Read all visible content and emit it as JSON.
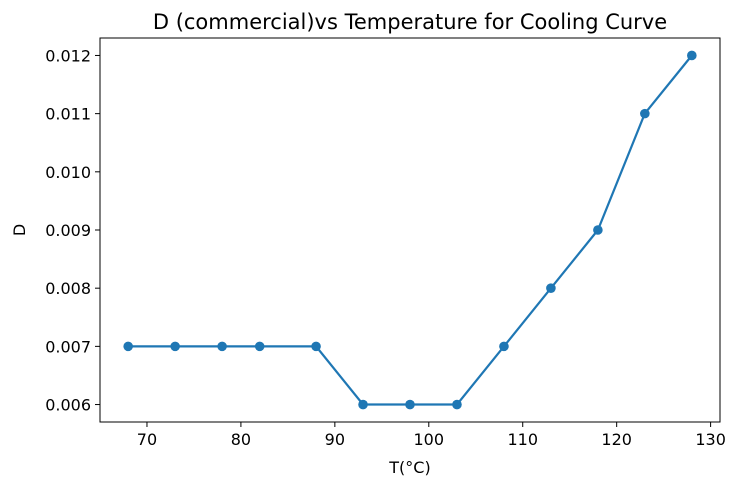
{
  "chart_data": {
    "type": "line",
    "title": "D (commercial)vs Temperature for Cooling Curve",
    "xlabel": "T(°C)",
    "ylabel": "D",
    "xlim": [
      65,
      131
    ],
    "ylim": [
      0.0057,
      0.0123
    ],
    "xticks": [
      70,
      80,
      90,
      100,
      110,
      120,
      130
    ],
    "yticks": [
      0.006,
      0.007,
      0.008,
      0.009,
      0.01,
      0.011,
      0.012
    ],
    "ytick_labels": [
      "0.006",
      "0.007",
      "0.008",
      "0.009",
      "0.010",
      "0.011",
      "0.012"
    ],
    "grid": false,
    "color": "#1f77b4",
    "series": [
      {
        "x": [
          68,
          73,
          78,
          82,
          88,
          93,
          98,
          103,
          108,
          113,
          118,
          123,
          128
        ],
        "y": [
          0.007,
          0.007,
          0.007,
          0.007,
          0.007,
          0.006,
          0.006,
          0.006,
          0.007,
          0.008,
          0.009,
          0.011,
          0.012
        ]
      }
    ]
  }
}
